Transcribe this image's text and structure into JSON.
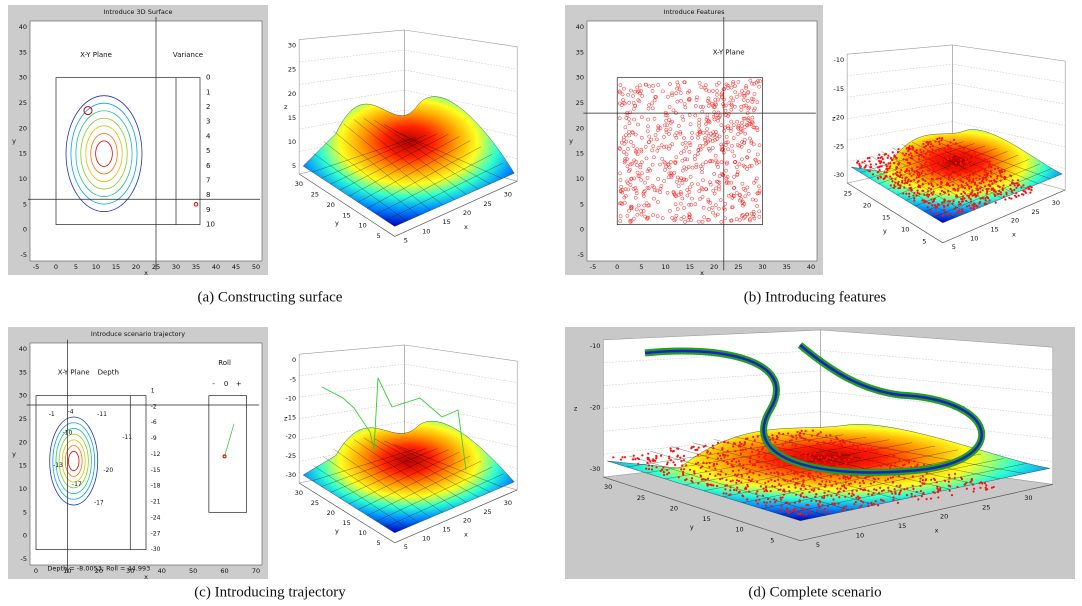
{
  "panels": [
    {
      "caption": "(a)  Constructing surface",
      "window": {
        "title": "Introduce 3D Surface",
        "labels": [
          "X-Y Plane",
          "Variance"
        ],
        "yticks": [
          40,
          35,
          30,
          25,
          20,
          15,
          10,
          5,
          0,
          -5
        ],
        "xticks": [
          -5,
          0,
          5,
          10,
          15,
          20,
          25,
          30,
          35,
          40,
          45,
          50
        ],
        "xlabel": "x",
        "ylabel": "y",
        "side_ticks": [
          0,
          1,
          2,
          3,
          4,
          5,
          6,
          7,
          8,
          9,
          10
        ]
      },
      "plot3d": {
        "zticks": [
          30,
          25,
          20,
          15,
          10,
          5
        ],
        "yticks": [
          30,
          25,
          20,
          15,
          10,
          5
        ],
        "xticks": [
          5,
          10,
          15,
          20,
          25,
          30
        ],
        "xlabel": "x",
        "ylabel": "y",
        "zlabel": "z"
      }
    },
    {
      "caption": "(b)  Introducing features",
      "window": {
        "title": "Introduce Features",
        "labels": [
          "X-Y Plane"
        ],
        "yticks": [
          40,
          35,
          30,
          25,
          20,
          15,
          10,
          5,
          0,
          -5
        ],
        "xticks": [
          -5,
          0,
          5,
          10,
          15,
          20,
          25,
          30,
          35,
          40
        ],
        "xlabel": "x",
        "ylabel": "y"
      },
      "plot3d": {
        "zticks": [
          -10,
          -15,
          -20,
          -25,
          -30
        ],
        "yticks": [
          25,
          20,
          15,
          10,
          5
        ],
        "xticks": [
          5,
          10,
          15,
          20,
          25,
          30
        ],
        "xlabel": "x",
        "ylabel": "y",
        "zlabel": "z"
      }
    },
    {
      "caption": "(c)  Introducing trajectory",
      "window": {
        "title": "Introduce scenario trajectory",
        "labels": [
          "X-Y Plane",
          "Depth",
          "Roll"
        ],
        "yticks": [
          40,
          35,
          30,
          25,
          20,
          15,
          10,
          5,
          0,
          -5
        ],
        "xticks": [
          0,
          10,
          20,
          30,
          40,
          50,
          60,
          70
        ],
        "xlabel": "x",
        "ylabel": "y",
        "side_ticks": [
          1,
          -2,
          -6,
          -9,
          -12,
          -15,
          -18,
          -21,
          -24,
          -27,
          -30
        ],
        "roll_ticks": [
          "-",
          "0",
          "+"
        ],
        "contour_labels": [
          "-1",
          "-4",
          "-11",
          "-10",
          "-11",
          "-13",
          "-20",
          "-17",
          "-17"
        ],
        "status": "Depth = -8.0053; Roll = 44.993"
      },
      "plot3d": {
        "zticks": [
          0,
          -5,
          -10,
          -15,
          -20,
          -25,
          -30
        ],
        "yticks": [
          30,
          25,
          20,
          15,
          10,
          5
        ],
        "xticks": [
          5,
          10,
          15,
          20,
          25,
          30
        ],
        "xlabel": "x",
        "ylabel": "y",
        "zlabel": "z"
      }
    },
    {
      "caption": "(d)  Complete scenario",
      "plot3d": {
        "zticks": [
          -10,
          -20,
          -30
        ],
        "yticks": [
          30,
          25,
          20,
          15,
          10,
          5
        ],
        "xticks": [
          5,
          10,
          15,
          20,
          25,
          30
        ],
        "xlabel": "x",
        "ylabel": "y",
        "zlabel": "z"
      }
    }
  ]
}
